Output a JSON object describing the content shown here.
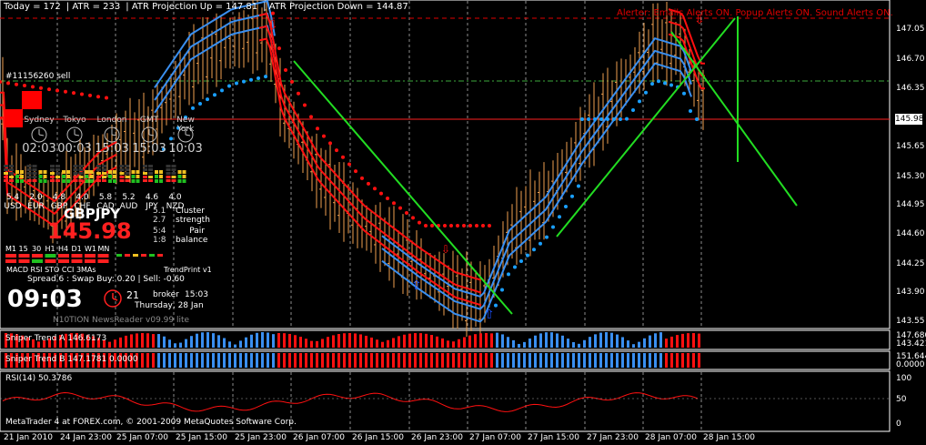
{
  "header": {
    "today": "Today = 172",
    "atr": "ATR = 233",
    "atr_up": "ATR Projection Up = 147.81",
    "atr_down": "ATR Projection Down = 144.87"
  },
  "alert_text": "Alerter:  Emails Alerts ON.  Popup Alerts ON.  Sound Alerts ON.",
  "order_tag": "#11156260 sell",
  "sessions": [
    {
      "name": "Sydney",
      "time": "02:03"
    },
    {
      "name": "Tokyo",
      "time": "00:03"
    },
    {
      "name": "London",
      "time": "15:03"
    },
    {
      "name": "GMT",
      "time": "15:03"
    },
    {
      "name": "New York",
      "time": "10:03"
    }
  ],
  "currency_strength": [
    {
      "code": "USD",
      "value": "5.4"
    },
    {
      "code": "EUR",
      "value": "2.0"
    },
    {
      "code": "GBP",
      "value": "4.8"
    },
    {
      "code": "CHF",
      "value": "4.0"
    },
    {
      "code": "CAD",
      "value": "5.8"
    },
    {
      "code": "AUD",
      "value": "5.2"
    },
    {
      "code": "JPY",
      "value": "4.6"
    },
    {
      "code": "NZD",
      "value": "4.0"
    }
  ],
  "symbol": "GBPJPY",
  "current_price": "145.98",
  "cluster": {
    "v1": "5.1",
    "v2": "2.7",
    "label": "Cluster strength"
  },
  "pair": {
    "v1": "5:4",
    "v2": "1:8",
    "label": "Pair balance"
  },
  "timeframes": [
    "M1",
    "15",
    "30",
    "H1",
    "H4",
    "D1",
    "W1",
    "MN"
  ],
  "indicators_line": "MACD  RSI STO CCI   3MAs",
  "trendprint": "TrendPrint v1",
  "spread_line": "Spread 6  :  Swap Buy: 0.20  |  Sell: -0.60",
  "clock": {
    "time": "09:03",
    "seconds": "21",
    "broker_label": "broker",
    "broker_time": "15:03",
    "date": "Thursday, 28 Jan"
  },
  "newsreader": "N10TION NewsReader v09.99 lite",
  "price_axis": [
    "147.05",
    "146.70",
    "146.35",
    "145.98",
    "145.65",
    "145.30",
    "144.95",
    "144.60",
    "144.25",
    "143.90",
    "143.55"
  ],
  "panels": {
    "sniper_a": {
      "label": "Sniper Trend A 146.6173",
      "scale_top": "147.680",
      "scale_bottom": "143.4213"
    },
    "sniper_b": {
      "label": "Sniper Trend B 147.1781 0.0000",
      "scale_top": "151.644",
      "scale_bottom": "0.0000"
    },
    "rsi": {
      "label": "RSI(14) 50.3786",
      "levels": [
        "100",
        "50",
        "0"
      ]
    }
  },
  "time_axis": [
    "21 Jan 2010",
    "24 Jan 23:00",
    "25 Jan 07:00",
    "25 Jan 15:00",
    "25 Jan 23:00",
    "26 Jan 07:00",
    "26 Jan 15:00",
    "26 Jan 23:00",
    "27 Jan 07:00",
    "27 Jan 15:00",
    "27 Jan 23:00",
    "28 Jan 07:00",
    "28 Jan 15:00"
  ],
  "copyright": "MetaTrader 4 at FOREX.com, © 2001-2009 MetaQuotes Software Corp.",
  "colors": {
    "bull": "#3a8ff0",
    "bear": "#ff1010",
    "trendline": "#22dd22",
    "candle": "#f0a050",
    "dots_blue": "#1aa0ff",
    "dots_red": "#ff1010"
  },
  "chart_data": {
    "type": "line",
    "title": "",
    "price_range": [
      143.4,
      147.3
    ],
    "current_price": 145.98
  }
}
